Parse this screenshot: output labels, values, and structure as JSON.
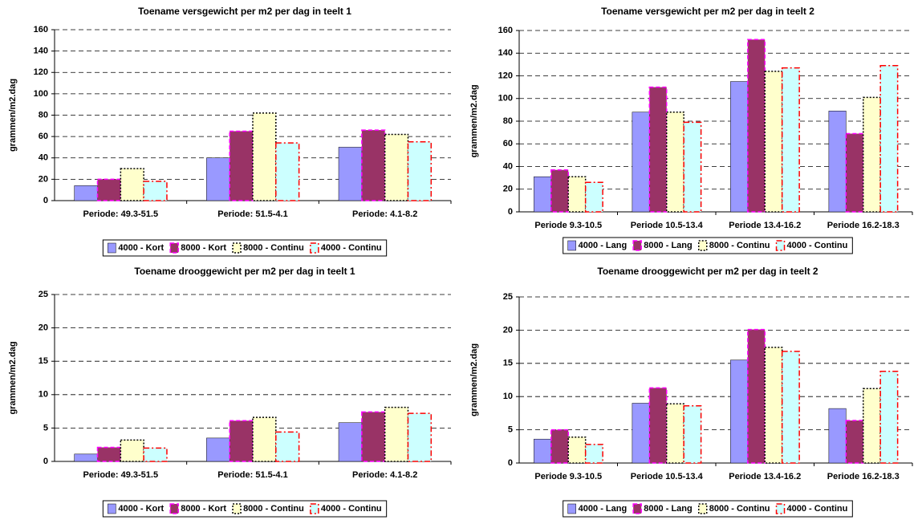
{
  "chart_data": [
    {
      "type": "bar",
      "title": "Toename versgewicht per m2 per dag in teelt 1",
      "ylabel": "grammen/m2.dag",
      "categories": [
        "Periode: 49.3-51.5",
        "Periode: 51.5-4.1",
        "Periode: 4.1-8.2"
      ],
      "ylim": [
        0,
        160
      ],
      "yticks": [
        0,
        20,
        40,
        60,
        80,
        100,
        120,
        140,
        160
      ],
      "grid": true,
      "series": [
        {
          "name": "4000 - Kort",
          "color": "#9999ff",
          "values": [
            14,
            40,
            50
          ]
        },
        {
          "name": "8000 - Kort",
          "color": "#993366",
          "values": [
            20,
            65,
            66
          ]
        },
        {
          "name": "8000 - Continu",
          "color": "#ffffcc",
          "values": [
            30,
            82,
            62
          ]
        },
        {
          "name": "4000 - Continu",
          "color": "#ccffff",
          "values": [
            18,
            54,
            55
          ]
        }
      ]
    },
    {
      "type": "bar",
      "title": "Toename versgewicht per m2 per dag in teelt 2",
      "ylabel": "grammen/m2.dag",
      "categories": [
        "Periode 9.3-10.5",
        "Periode 10.5-13.4",
        "Periode 13.4-16.2",
        "Periode 16.2-18.3"
      ],
      "ylim": [
        0,
        160
      ],
      "yticks": [
        0,
        20,
        40,
        60,
        80,
        100,
        120,
        140,
        160
      ],
      "grid": true,
      "series": [
        {
          "name": "4000 - Lang",
          "color": "#9999ff",
          "values": [
            31,
            88,
            115,
            89
          ]
        },
        {
          "name": "8000 - Lang",
          "color": "#993366",
          "values": [
            37,
            110,
            152,
            69
          ]
        },
        {
          "name": "8000 - Continu",
          "color": "#ffffcc",
          "values": [
            31,
            88,
            124,
            101
          ]
        },
        {
          "name": "4000 - Continu",
          "color": "#ccffff",
          "values": [
            26,
            79,
            127,
            129
          ]
        }
      ]
    },
    {
      "type": "bar",
      "title": "Toename drooggewicht per m2 per dag in teelt 1",
      "ylabel": "grammen/m2.dag",
      "categories": [
        "Periode: 49.3-51.5",
        "Periode: 51.5-4.1",
        "Periode: 4.1-8.2"
      ],
      "ylim": [
        0,
        25
      ],
      "yticks": [
        0,
        5,
        10,
        15,
        20,
        25
      ],
      "grid": true,
      "series": [
        {
          "name": "4000 - Kort",
          "color": "#9999ff",
          "values": [
            1.1,
            3.5,
            5.8
          ]
        },
        {
          "name": "8000 - Kort",
          "color": "#993366",
          "values": [
            2.1,
            6.1,
            7.4
          ]
        },
        {
          "name": "8000 - Continu",
          "color": "#ffffcc",
          "values": [
            3.2,
            6.6,
            8.1
          ]
        },
        {
          "name": "4000 - Continu",
          "color": "#ccffff",
          "values": [
            2.0,
            4.4,
            7.2
          ]
        }
      ]
    },
    {
      "type": "bar",
      "title": "Toename drooggewicht per m2 per dag in teelt 2",
      "ylabel": "grammen/m2.dag",
      "categories": [
        "Periode 9.3-10.5",
        "Periode 10.5-13.4",
        "Periode 13.4-16.2",
        "Periode 16.2-18.3"
      ],
      "ylim": [
        0,
        25
      ],
      "yticks": [
        0,
        5,
        10,
        15,
        20,
        25
      ],
      "grid": true,
      "series": [
        {
          "name": "4000 - Lang",
          "color": "#9999ff",
          "values": [
            3.6,
            9.0,
            15.5,
            8.2
          ]
        },
        {
          "name": "8000 - Lang",
          "color": "#993366",
          "values": [
            5.0,
            11.3,
            20.1,
            6.4
          ]
        },
        {
          "name": "8000 - Continu",
          "color": "#ffffcc",
          "values": [
            3.9,
            8.9,
            17.4,
            11.2
          ]
        },
        {
          "name": "4000 - Continu",
          "color": "#ccffff",
          "values": [
            2.8,
            8.6,
            16.8,
            13.8
          ]
        }
      ]
    }
  ]
}
